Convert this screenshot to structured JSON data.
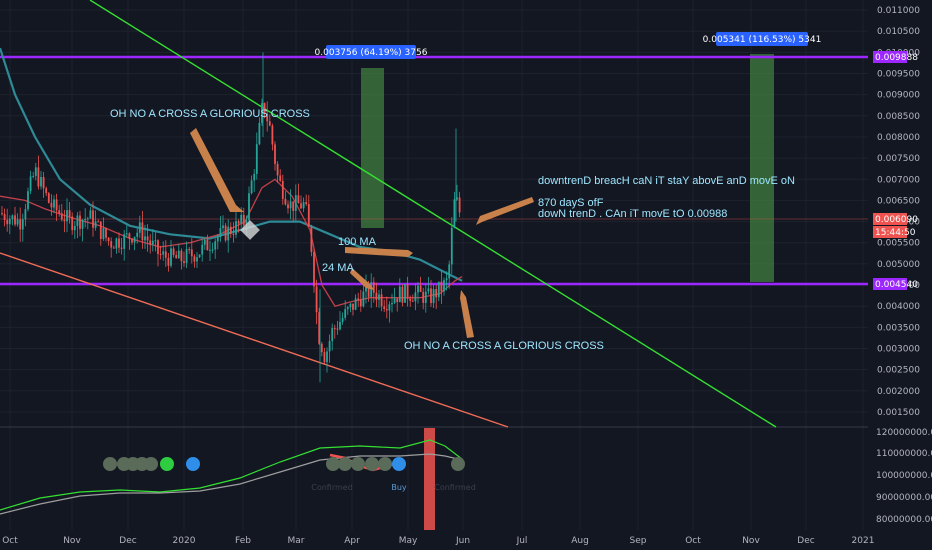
{
  "chart_data": {
    "type": "candlestick",
    "price_axis": {
      "ticks": [
        "0.011000",
        "0.010500",
        "0.010000",
        "0.009500",
        "0.009000",
        "0.008500",
        "0.008000",
        "0.007500",
        "0.007000",
        "0.006500",
        "0.006000",
        "0.005500",
        "0.005000",
        "0.004500",
        "0.004000",
        "0.003500",
        "0.003000",
        "0.002500",
        "0.002000",
        "0.001500"
      ],
      "range": [
        0.00105,
        0.01115
      ]
    },
    "time_axis": {
      "ticks": [
        "Oct",
        "Nov",
        "Dec",
        "2020",
        "Feb",
        "Mar",
        "Apr",
        "May",
        "Jun",
        "Jul",
        "Aug",
        "Sep",
        "Oct",
        "Nov",
        "Dec",
        "2021"
      ]
    },
    "indicator_axis": {
      "ticks": [
        "120000000.000000",
        "110000000.000000",
        "100000000.000000",
        "90000000.000000",
        "80000000.000000"
      ]
    },
    "price_tags": {
      "upper_level": "0.009888",
      "current_price": "0.006090",
      "countdown": "15:44:50",
      "lower_level": "0.004540"
    },
    "horizontal_levels": [
      0.009888,
      0.00454
    ],
    "measure_boxes": [
      {
        "label": "0.003756 (64.19%) 3756"
      },
      {
        "label": "0.005341 (116.53%) 5341"
      }
    ],
    "annotations": {
      "cross_top": "OH NO A CROSS  A  GLORIOUS CROSS",
      "cross_bottom": "OH NO A CROSS  A  GLORIOUS CROSS",
      "ma100": "100 MA",
      "ma24": "24 MA",
      "breach": "downtrenD breacH caN iT staY abovE anD movE oN",
      "days": "870 dayS ofF",
      "target": "dowN trenD . CAn iT movE tO  0.00988"
    },
    "signals": {
      "buy": "Buy",
      "faint": "Confirmed"
    },
    "colors": {
      "background": "#131722",
      "level": "#9c27ff",
      "downtrend": "#34e032",
      "support": "#ef6c56",
      "up_candle": "#26a69a",
      "down_candle": "#ef5350",
      "ma100": "#2e8b96",
      "ma24": "#c2404a",
      "annotation": "#9ee6ff",
      "arrow": "#c8814a",
      "measure_box": "#3f7d3f",
      "measure_tag": "#2962ff"
    }
  }
}
